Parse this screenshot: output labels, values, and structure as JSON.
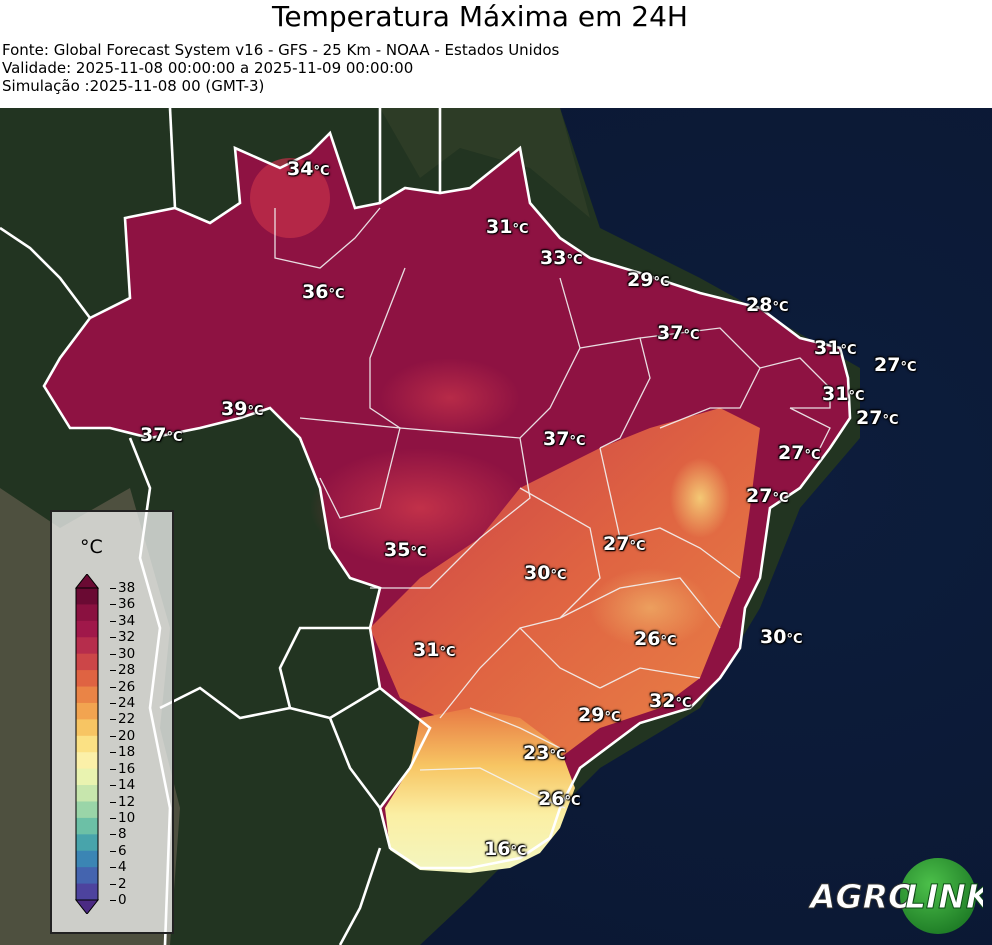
{
  "header": {
    "title": "Temperatura Máxima em 24H",
    "source": "Fonte: Global Forecast System v16 - GFS - 25 Km - NOAA - Estados Unidos",
    "validity": "Validade: 2025-11-08 00:00:00 a 2025-11-09 00:00:00",
    "simulation": "Simulação :2025-11-08 00 (GMT-3)"
  },
  "legend": {
    "unit": "°C",
    "ticks": [
      "38",
      "36",
      "34",
      "32",
      "30",
      "28",
      "26",
      "24",
      "22",
      "20",
      "18",
      "16",
      "14",
      "12",
      "10",
      "8",
      "6",
      "4",
      "2",
      "0"
    ],
    "colors": {
      "38": "#6a0a33",
      "36": "#8a1140",
      "34": "#a0184a",
      "32": "#b62d4c",
      "30": "#cc4648",
      "28": "#df6342",
      "26": "#ea8446",
      "24": "#f2a450",
      "22": "#f7c563",
      "20": "#fbe184",
      "18": "#fbf0a8",
      "16": "#e9f3b0",
      "14": "#c7e6ad",
      "12": "#9ad5a8",
      "10": "#6cc0a6",
      "8": "#48a4ab",
      "6": "#3b85b4",
      "4": "#4464af",
      "2": "#4d439e",
      "0": "#4b2a83"
    }
  },
  "temperatures": [
    {
      "id": "t1",
      "value": "34",
      "unit": "°C"
    },
    {
      "id": "t2",
      "value": "31",
      "unit": "°C"
    },
    {
      "id": "t3",
      "value": "33",
      "unit": "°C"
    },
    {
      "id": "t4",
      "value": "36",
      "unit": "°C"
    },
    {
      "id": "t5",
      "value": "29",
      "unit": "°C"
    },
    {
      "id": "t6",
      "value": "28",
      "unit": "°C"
    },
    {
      "id": "t7",
      "value": "37",
      "unit": "°C"
    },
    {
      "id": "t8",
      "value": "31",
      "unit": "°C"
    },
    {
      "id": "t9",
      "value": "27",
      "unit": "°C"
    },
    {
      "id": "t10",
      "value": "31",
      "unit": "°C"
    },
    {
      "id": "t11",
      "value": "27",
      "unit": "°C"
    },
    {
      "id": "t12",
      "value": "39",
      "unit": "°C"
    },
    {
      "id": "t13",
      "value": "37",
      "unit": "°C"
    },
    {
      "id": "t14",
      "value": "37",
      "unit": "°C"
    },
    {
      "id": "t15",
      "value": "27",
      "unit": "°C"
    },
    {
      "id": "t16",
      "value": "27",
      "unit": "°C"
    },
    {
      "id": "t17",
      "value": "27",
      "unit": "°C"
    },
    {
      "id": "t18",
      "value": "35",
      "unit": "°C"
    },
    {
      "id": "t19",
      "value": "30",
      "unit": "°C"
    },
    {
      "id": "t20",
      "value": "26",
      "unit": "°C"
    },
    {
      "id": "t21",
      "value": "30",
      "unit": "°C"
    },
    {
      "id": "t22",
      "value": "31",
      "unit": "°C"
    },
    {
      "id": "t23",
      "value": "32",
      "unit": "°C"
    },
    {
      "id": "t24",
      "value": "29",
      "unit": "°C"
    },
    {
      "id": "t25",
      "value": "23",
      "unit": "°C"
    },
    {
      "id": "t26",
      "value": "26",
      "unit": "°C"
    },
    {
      "id": "t27",
      "value": "16",
      "unit": "°C"
    }
  ],
  "logo": {
    "part1": "AGRO",
    "part2": "LINK"
  }
}
